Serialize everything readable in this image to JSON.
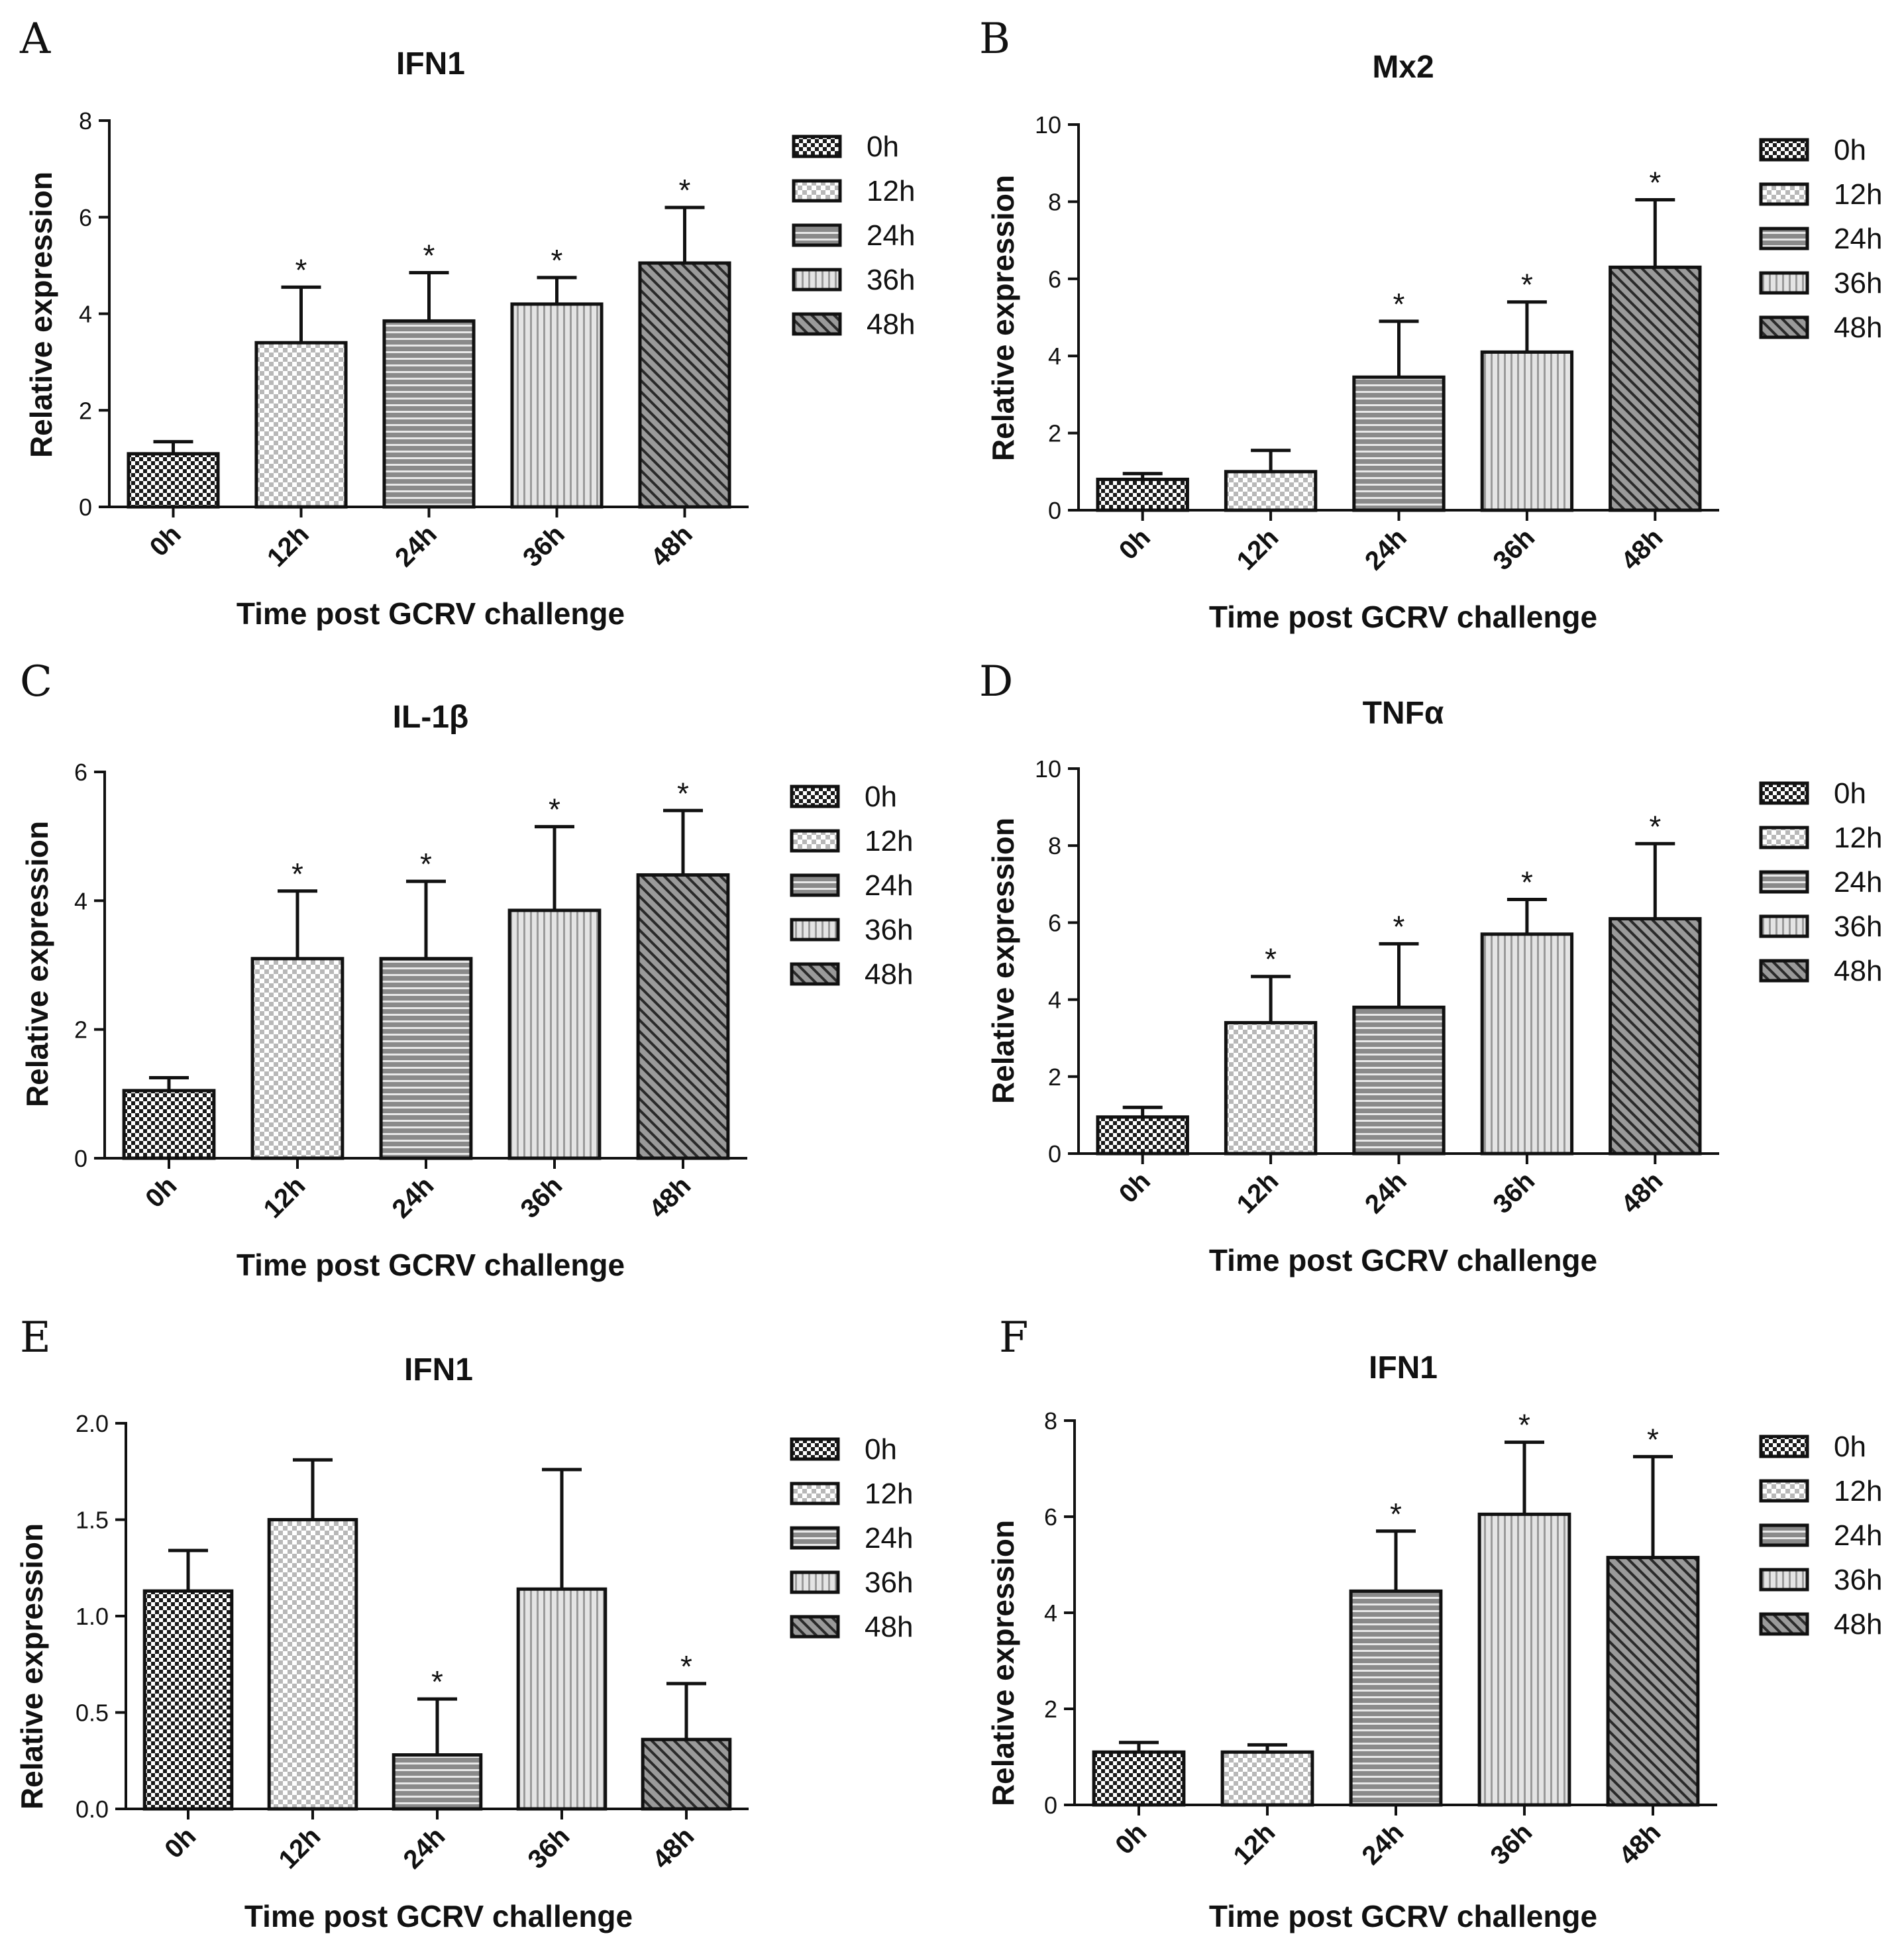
{
  "styles": {
    "ink": "#111111",
    "fills": {
      "0h": "pat-check",
      "12h": "pat-lightcheck",
      "24h": "pat-hstripe",
      "36h": "pat-vstripe",
      "48h": "pat-diag"
    }
  },
  "chart_data": [
    {
      "type": "bar",
      "letter": "A",
      "title": "IFN1",
      "xlabel": "Time post GCRV challenge",
      "ylabel": "Relative expression",
      "categories": [
        "0h",
        "12h",
        "24h",
        "36h",
        "48h"
      ],
      "values": [
        1.1,
        3.4,
        3.85,
        4.2,
        5.05
      ],
      "errors": [
        0.25,
        1.15,
        1.0,
        0.55,
        1.15
      ],
      "significant": [
        false,
        true,
        true,
        true,
        true
      ],
      "ylim": [
        0,
        8
      ],
      "yticks": [
        "0",
        "2",
        "4",
        "6",
        "8"
      ],
      "legend": [
        "0h",
        "12h",
        "24h",
        "36h",
        "48h"
      ]
    },
    {
      "type": "bar",
      "letter": "B",
      "title": "Mx2",
      "xlabel": "Time post GCRV challenge",
      "ylabel": "Relative expression",
      "categories": [
        "0h",
        "12h",
        "24h",
        "36h",
        "48h"
      ],
      "values": [
        0.8,
        1.0,
        3.45,
        4.1,
        6.3
      ],
      "errors": [
        0.15,
        0.55,
        1.45,
        1.3,
        1.75
      ],
      "significant": [
        false,
        false,
        true,
        true,
        true
      ],
      "ylim": [
        0,
        10
      ],
      "yticks": [
        "0",
        "2",
        "4",
        "6",
        "8",
        "10"
      ],
      "legend": [
        "0h",
        "12h",
        "24h",
        "36h",
        "48h"
      ]
    },
    {
      "type": "bar",
      "letter": "C",
      "title": "IL-1β",
      "xlabel": "Time post GCRV challenge",
      "ylabel": "Relative expression",
      "categories": [
        "0h",
        "12h",
        "24h",
        "36h",
        "48h"
      ],
      "values": [
        1.05,
        3.1,
        3.1,
        3.85,
        4.4
      ],
      "errors": [
        0.2,
        1.05,
        1.2,
        1.3,
        1.0
      ],
      "significant": [
        false,
        true,
        true,
        true,
        true
      ],
      "ylim": [
        0,
        6
      ],
      "yticks": [
        "0",
        "2",
        "4",
        "6"
      ],
      "legend": [
        "0h",
        "12h",
        "24h",
        "36h",
        "48h"
      ]
    },
    {
      "type": "bar",
      "letter": "D",
      "title": "TNFα",
      "xlabel": "Time post GCRV challenge",
      "ylabel": "Relative expression",
      "categories": [
        "0h",
        "12h",
        "24h",
        "36h",
        "48h"
      ],
      "values": [
        0.95,
        3.4,
        3.8,
        5.7,
        6.1
      ],
      "errors": [
        0.25,
        1.2,
        1.65,
        0.9,
        1.95
      ],
      "significant": [
        false,
        true,
        true,
        true,
        true
      ],
      "ylim": [
        0,
        10
      ],
      "yticks": [
        "0",
        "2",
        "4",
        "6",
        "8",
        "10"
      ],
      "legend": [
        "0h",
        "12h",
        "24h",
        "36h",
        "48h"
      ]
    },
    {
      "type": "bar",
      "letter": "E",
      "title": "IFN1",
      "xlabel": "Time post GCRV challenge",
      "ylabel": "Relative expression",
      "categories": [
        "0h",
        "12h",
        "24h",
        "36h",
        "48h"
      ],
      "values": [
        1.13,
        1.5,
        0.28,
        1.14,
        0.36
      ],
      "errors": [
        0.21,
        0.31,
        0.29,
        0.62,
        0.29
      ],
      "significant": [
        false,
        false,
        true,
        false,
        true
      ],
      "ylim": [
        0,
        2
      ],
      "yticks": [
        "0.0",
        "0.5",
        "1.0",
        "1.5",
        "2.0"
      ],
      "legend": [
        "0h",
        "12h",
        "24h",
        "36h",
        "48h"
      ]
    },
    {
      "type": "bar",
      "letter": "F",
      "title": "IFN1",
      "xlabel": "Time post GCRV challenge",
      "ylabel": "Relative expression",
      "categories": [
        "0h",
        "12h",
        "24h",
        "36h",
        "48h"
      ],
      "values": [
        1.1,
        1.1,
        4.45,
        6.05,
        5.15
      ],
      "errors": [
        0.2,
        0.15,
        1.25,
        1.5,
        2.1
      ],
      "significant": [
        false,
        false,
        true,
        true,
        true
      ],
      "ylim": [
        0,
        8
      ],
      "yticks": [
        "0",
        "2",
        "4",
        "6",
        "8"
      ],
      "legend": [
        "0h",
        "12h",
        "24h",
        "36h",
        "48h"
      ]
    }
  ]
}
